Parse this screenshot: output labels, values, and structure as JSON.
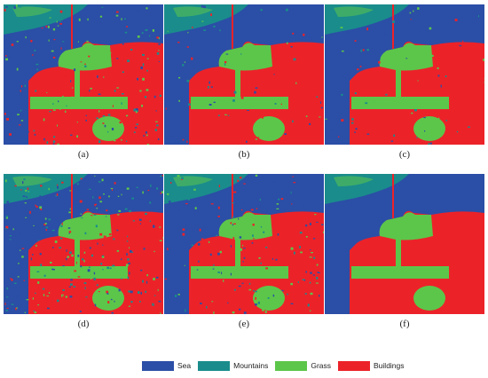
{
  "panels": [
    {
      "id": "a",
      "caption": "(a)",
      "noise": 0.08
    },
    {
      "id": "b",
      "caption": "(b)",
      "noise": 0.03
    },
    {
      "id": "c",
      "caption": "(c)",
      "noise": 0.03
    },
    {
      "id": "d",
      "caption": "(d)",
      "noise": 0.12
    },
    {
      "id": "e",
      "caption": "(e)",
      "noise": 0.07
    },
    {
      "id": "f",
      "caption": "(f)",
      "noise": 0.0
    }
  ],
  "legend": [
    {
      "label": "Sea",
      "color": "#2b4ea6"
    },
    {
      "label": "Mountains",
      "color": "#1a8c8c"
    },
    {
      "label": "Grass",
      "color": "#5cc64a"
    },
    {
      "label": "Buildings",
      "color": "#ec2229"
    }
  ]
}
